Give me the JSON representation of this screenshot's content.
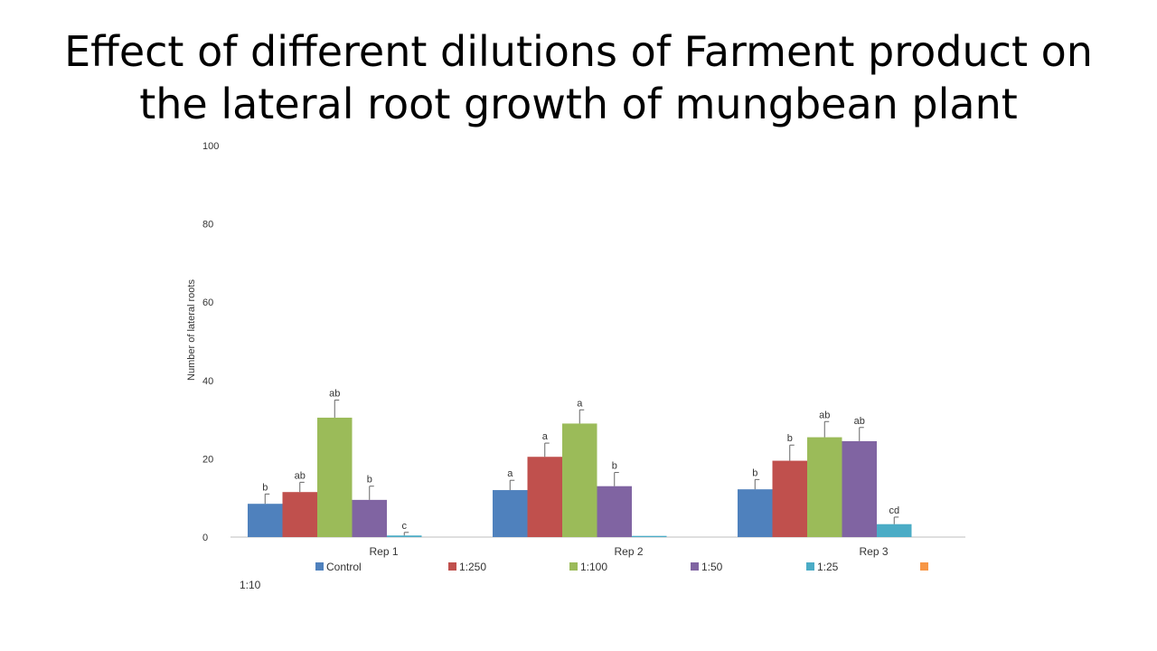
{
  "slide": {
    "title_line1": "Effect of different dilutions of Farment product on",
    "title_line2": "the lateral root growth of mungbean plant"
  },
  "chart_data": {
    "type": "bar",
    "title": "",
    "xlabel": "",
    "ylabel": "Number of lateral roots",
    "ylim": [
      0,
      100
    ],
    "yticks": [
      0,
      20,
      40,
      60,
      80,
      100
    ],
    "grid": false,
    "legend_placement": "bottom",
    "categories": [
      "Rep 1",
      "Rep 2",
      "Rep 3"
    ],
    "series": [
      {
        "name": "Control",
        "color": "#4f81bd",
        "values": [
          8.5,
          12,
          12.2
        ],
        "errors": [
          2.5,
          2.5,
          2.5
        ],
        "labels": [
          "b",
          "a",
          "b"
        ]
      },
      {
        "name": "1:250",
        "color": "#c0504d",
        "values": [
          11.5,
          20.5,
          19.5
        ],
        "errors": [
          2.5,
          3.5,
          4.0
        ],
        "labels": [
          "ab",
          "a",
          "b"
        ]
      },
      {
        "name": "1:100",
        "color": "#9bbb59",
        "values": [
          30.5,
          29,
          25.5
        ],
        "errors": [
          4.5,
          3.5,
          4.0
        ],
        "labels": [
          "ab",
          "a",
          "ab"
        ]
      },
      {
        "name": "1:50",
        "color": "#8064a2",
        "values": [
          9.5,
          13,
          24.5
        ],
        "errors": [
          3.5,
          3.5,
          3.5
        ],
        "labels": [
          "b",
          "b",
          "ab"
        ]
      },
      {
        "name": "1:25",
        "color": "#4bacc6",
        "values": [
          0.4,
          0.3,
          3.3
        ],
        "errors": [
          0.8,
          0,
          1.8
        ],
        "labels": [
          "c",
          "",
          "cd"
        ]
      },
      {
        "name": "1:10",
        "color": "#f79646",
        "values": [
          0,
          0,
          0
        ],
        "errors": [
          0,
          0,
          0
        ],
        "labels": [
          "",
          "",
          ""
        ]
      }
    ]
  }
}
